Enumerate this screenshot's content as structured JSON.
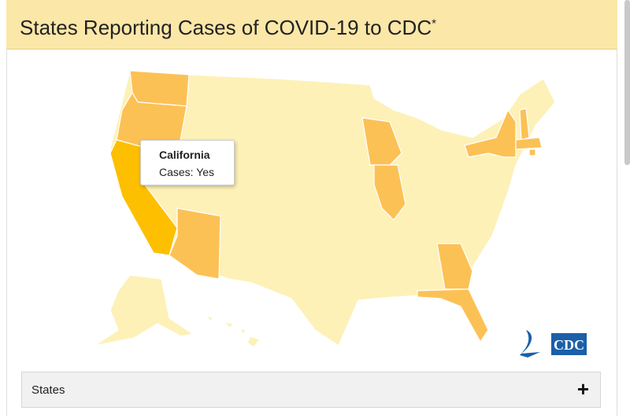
{
  "header": {
    "title": "States Reporting Cases of COVID-19 to CDC",
    "footnote_mark": "*"
  },
  "tooltip": {
    "state": "California",
    "status": "Cases: Yes"
  },
  "logo_text": "CDC",
  "accordion": {
    "label": "States",
    "toggle": "+"
  }
}
